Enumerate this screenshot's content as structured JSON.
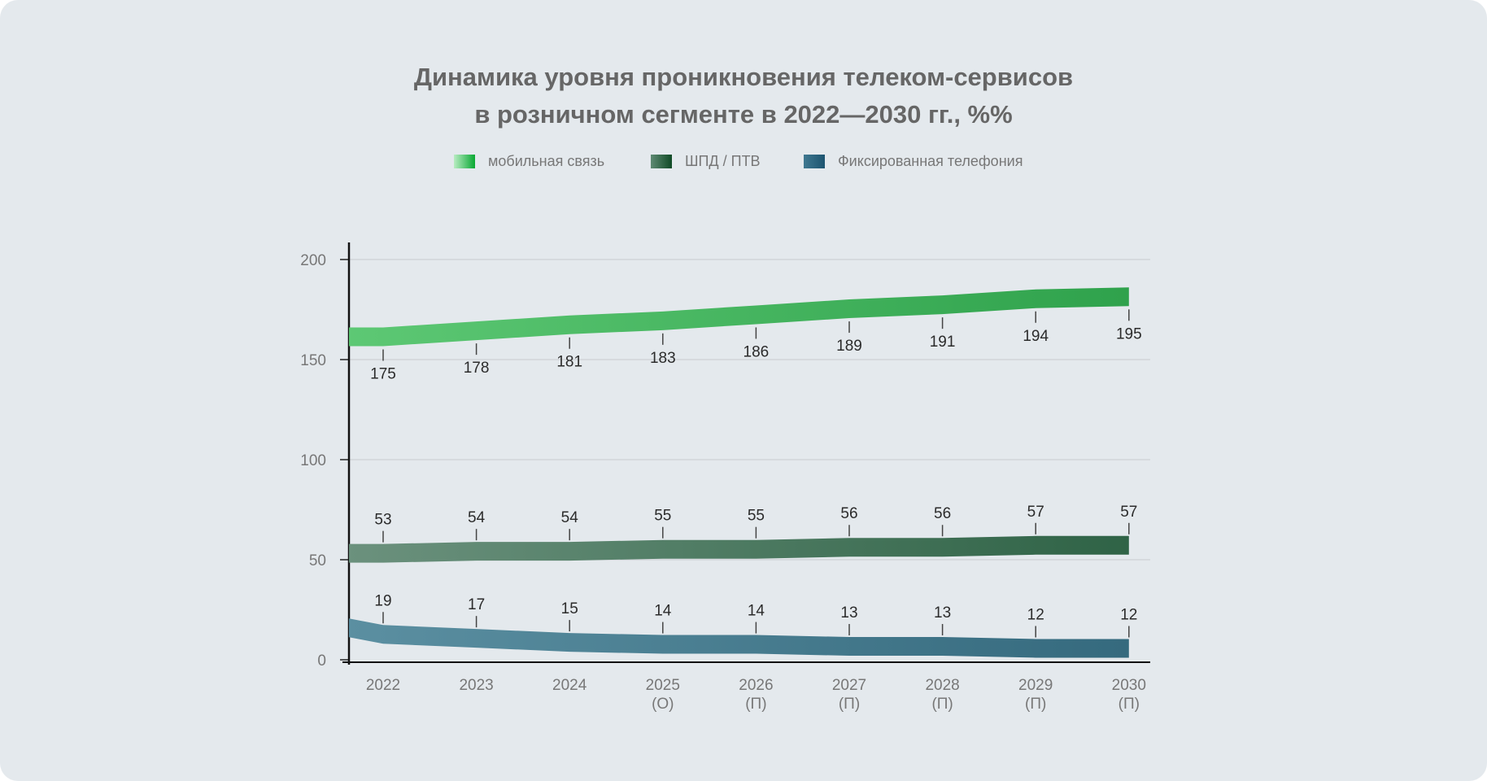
{
  "chart_data": {
    "type": "line",
    "title": [
      "Динамика уровня проникновения телеком-сервисов",
      "в розничном сегменте в 2022—2030 гг., %%"
    ],
    "categories": [
      "2022",
      "2023",
      "2024",
      "2025",
      "2026",
      "2027",
      "2028",
      "2029",
      "2030"
    ],
    "category_notes": [
      "",
      "",
      "",
      "(О)",
      "(П)",
      "(П)",
      "(П)",
      "(П)",
      "(П)"
    ],
    "ylim": [
      0,
      200
    ],
    "yticks": [
      0,
      50,
      100,
      150,
      200
    ],
    "grid": true,
    "legend_position": "top-center",
    "series": [
      {
        "name": "мобильная связь",
        "values": [
          175,
          178,
          181,
          183,
          186,
          189,
          191,
          194,
          195
        ],
        "color_start": "#5dc874",
        "color_end": "#2fa24c",
        "label_pos": "below"
      },
      {
        "name": "ШПД / ПТВ",
        "values": [
          53,
          54,
          54,
          55,
          55,
          56,
          56,
          57,
          57
        ],
        "color_start": "#6b917d",
        "color_end": "#2f6346",
        "label_pos": "above"
      },
      {
        "name": "Фиксированная телефония",
        "values": [
          19,
          17,
          15,
          14,
          14,
          13,
          13,
          12,
          12
        ],
        "color_start": "#5b8fa1",
        "color_end": "#356a7e",
        "label_pos": "above"
      }
    ]
  }
}
